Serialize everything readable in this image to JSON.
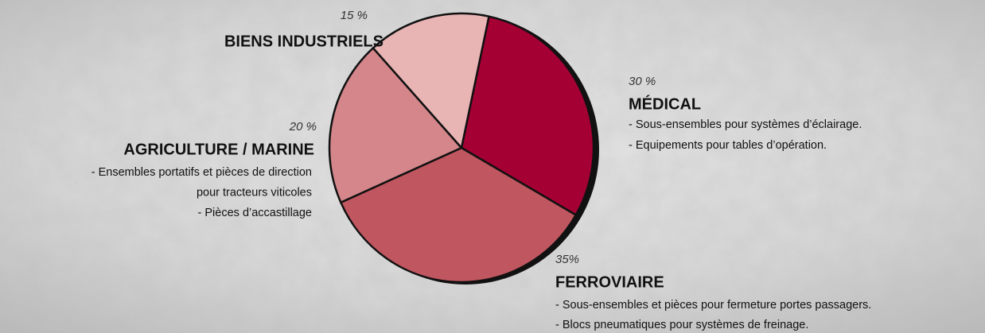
{
  "chart_data": {
    "type": "pie",
    "categories": [
      "MÉDICAL",
      "FERROVIAIRE",
      "AGRICULTURE / MARINE",
      "BIENS INDUSTRIELS"
    ],
    "values": [
      30,
      35,
      20,
      15
    ],
    "value_labels": [
      "30 %",
      "35%",
      "20 %",
      "15 %"
    ],
    "colors": [
      "#a50034",
      "#c0565f",
      "#d4868a",
      "#e8b4b4"
    ],
    "descriptions": [
      [
        "- Sous-ensembles pour systèmes d’éclairage.",
        "- Equipements pour tables d’opération."
      ],
      [
        "- Sous-ensembles et pièces pour fermeture portes passagers.",
        "- Blocs pneumatiques pour systèmes de freinage."
      ],
      [
        "- Ensembles portatifs et pièces de direction",
        "pour tracteurs viticoles",
        "- Pièces d’accastillage"
      ],
      []
    ]
  }
}
